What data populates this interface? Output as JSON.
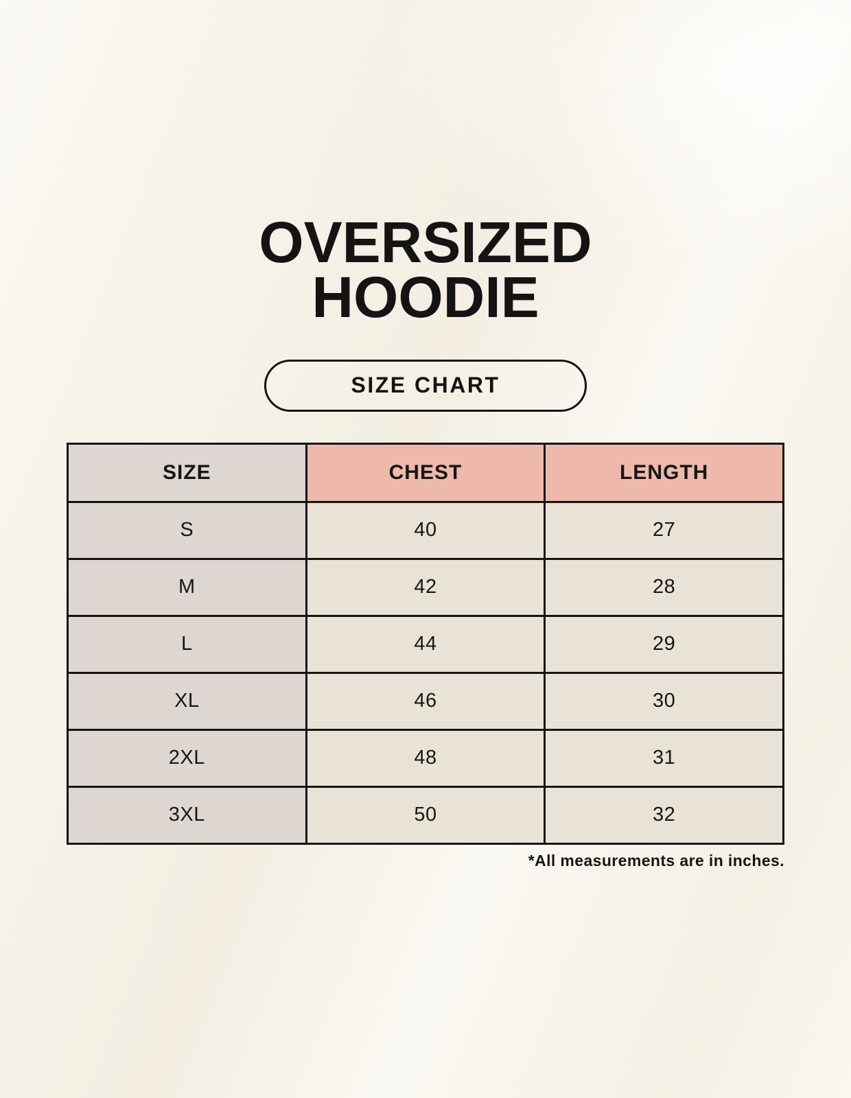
{
  "header": {
    "title_line1": "OVERSIZED",
    "title_line2": "HOODIE",
    "button_label": "SIZE CHART"
  },
  "table": {
    "columns": [
      "SIZE",
      "CHEST",
      "LENGTH"
    ],
    "rows": [
      {
        "size": "S",
        "chest": "40",
        "length": "27"
      },
      {
        "size": "M",
        "chest": "42",
        "length": "28"
      },
      {
        "size": "L",
        "chest": "44",
        "length": "29"
      },
      {
        "size": "XL",
        "chest": "46",
        "length": "30"
      },
      {
        "size": "2XL",
        "chest": "48",
        "length": "31"
      },
      {
        "size": "3XL",
        "chest": "50",
        "length": "32"
      }
    ]
  },
  "footnote": "*All measurements are in inches.",
  "colors": {
    "background": "#f7f3e9",
    "size_column_bg": "#ddd6d1",
    "header_accent_bg": "#eeb9aa",
    "cell_bg": "#e9e2d6",
    "border": "#141414",
    "text": "#161616"
  },
  "chart_data": {
    "type": "table",
    "title": "OVERSIZED HOODIE SIZE CHART",
    "columns": [
      "SIZE",
      "CHEST",
      "LENGTH"
    ],
    "categories": [
      "S",
      "M",
      "L",
      "XL",
      "2XL",
      "3XL"
    ],
    "series": [
      {
        "name": "CHEST",
        "values": [
          40,
          42,
          44,
          46,
          48,
          50
        ]
      },
      {
        "name": "LENGTH",
        "values": [
          27,
          28,
          29,
          30,
          31,
          32
        ]
      }
    ],
    "units": "inches",
    "legend_position": "none",
    "grid": true
  }
}
